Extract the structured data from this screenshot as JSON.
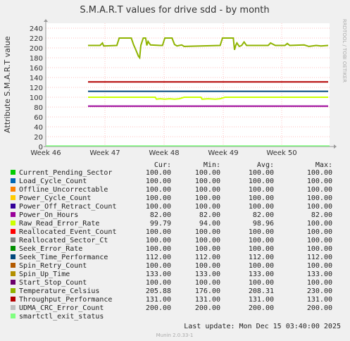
{
  "chart_data": {
    "type": "line",
    "title": "S.M.A.R.T values for drive sdd - by month",
    "ylabel": "Attribute S.M.A.R.T value",
    "side_label": "RRDTOOL / TOBI OETIKER",
    "x_ticks": [
      "Week 46",
      "Week 47",
      "Week 48",
      "Week 49",
      "Week 50"
    ],
    "y_ticks": [
      0,
      20,
      40,
      60,
      80,
      100,
      120,
      140,
      160,
      180,
      200,
      220,
      240
    ],
    "ylim": [
      0,
      250
    ],
    "grid": true,
    "columns": [
      "Cur:",
      "Min:",
      "Avg:",
      "Max:"
    ],
    "series": [
      {
        "name": "Current_Pending_Sector",
        "color": "#00cc00",
        "cur": "100.00",
        "min": "100.00",
        "avg": "100.00",
        "max": "100.00",
        "line": "hidden"
      },
      {
        "name": "Load_Cycle_Count",
        "color": "#0066b3",
        "cur": "100.00",
        "min": "100.00",
        "avg": "100.00",
        "max": "100.00",
        "line": "hidden"
      },
      {
        "name": "Offline_Uncorrectable",
        "color": "#ff8000",
        "cur": "100.00",
        "min": "100.00",
        "avg": "100.00",
        "max": "100.00",
        "line": "hidden"
      },
      {
        "name": "Power_Cycle_Count",
        "color": "#ffcc00",
        "cur": "100.00",
        "min": "100.00",
        "avg": "100.00",
        "max": "100.00",
        "line": "hidden"
      },
      {
        "name": "Power_Off_Retract_Count",
        "color": "#330099",
        "cur": "100.00",
        "min": "100.00",
        "avg": "100.00",
        "max": "100.00",
        "line": "hidden"
      },
      {
        "name": "Power_On_Hours",
        "color": "#990099",
        "cur": "82.00",
        "min": "82.00",
        "avg": "82.00",
        "max": "82.00",
        "line": "flat",
        "value": 82
      },
      {
        "name": "Raw_Read_Error_Rate",
        "color": "#ccff00",
        "cur": "99.79",
        "min": "94.00",
        "avg": "98.96",
        "max": "100.00",
        "line": "raw_read"
      },
      {
        "name": "Reallocated_Event_Count",
        "color": "#ff0000",
        "cur": "100.00",
        "min": "100.00",
        "avg": "100.00",
        "max": "100.00",
        "line": "hidden"
      },
      {
        "name": "Reallocated_Sector_Ct",
        "color": "#808080",
        "cur": "100.00",
        "min": "100.00",
        "avg": "100.00",
        "max": "100.00",
        "line": "hidden"
      },
      {
        "name": "Seek_Error_Rate",
        "color": "#008f00",
        "cur": "100.00",
        "min": "100.00",
        "avg": "100.00",
        "max": "100.00",
        "line": "hidden"
      },
      {
        "name": "Seek_Time_Performance",
        "color": "#00487d",
        "cur": "112.00",
        "min": "112.00",
        "avg": "112.00",
        "max": "112.00",
        "line": "flat",
        "value": 112
      },
      {
        "name": "Spin_Retry_Count",
        "color": "#b35a00",
        "cur": "100.00",
        "min": "100.00",
        "avg": "100.00",
        "max": "100.00",
        "line": "hidden"
      },
      {
        "name": "Spin_Up_Time",
        "color": "#b38f00",
        "cur": "133.00",
        "min": "133.00",
        "avg": "133.00",
        "max": "133.00",
        "line": "hidden"
      },
      {
        "name": "Start_Stop_Count",
        "color": "#6b006b",
        "cur": "100.00",
        "min": "100.00",
        "avg": "100.00",
        "max": "100.00",
        "line": "hidden"
      },
      {
        "name": "Temperature_Celsius",
        "color": "#8fb300",
        "cur": "205.88",
        "min": "176.00",
        "avg": "208.31",
        "max": "230.00",
        "line": "temperature"
      },
      {
        "name": "Throughput_Performance",
        "color": "#b30000",
        "cur": "131.00",
        "min": "131.00",
        "avg": "131.00",
        "max": "131.00",
        "line": "flat",
        "value": 131
      },
      {
        "name": "UDMA_CRC_Error_Count",
        "color": "#bebebe",
        "cur": "200.00",
        "min": "200.00",
        "avg": "200.00",
        "max": "200.00",
        "line": "hidden"
      },
      {
        "name": "smartctl_exit_status",
        "color": "#80ff80",
        "cur": "",
        "min": "",
        "avg": "",
        "max": "",
        "line": "zero"
      }
    ],
    "temperature_path": [
      [
        0.0,
        205
      ],
      [
        0.05,
        205
      ],
      [
        0.06,
        210
      ],
      [
        0.065,
        204
      ],
      [
        0.12,
        205
      ],
      [
        0.13,
        220
      ],
      [
        0.145,
        220
      ],
      [
        0.18,
        220
      ],
      [
        0.19,
        206
      ],
      [
        0.2,
        195
      ],
      [
        0.21,
        183
      ],
      [
        0.215,
        180
      ],
      [
        0.22,
        205
      ],
      [
        0.23,
        220
      ],
      [
        0.24,
        220
      ],
      [
        0.245,
        205
      ],
      [
        0.25,
        213
      ],
      [
        0.26,
        206
      ],
      [
        0.3,
        205
      ],
      [
        0.31,
        205
      ],
      [
        0.32,
        220
      ],
      [
        0.35,
        220
      ],
      [
        0.36,
        207
      ],
      [
        0.37,
        204
      ],
      [
        0.39,
        206
      ],
      [
        0.4,
        203
      ],
      [
        0.55,
        205
      ],
      [
        0.56,
        220
      ],
      [
        0.605,
        220
      ],
      [
        0.61,
        196
      ],
      [
        0.615,
        205
      ],
      [
        0.62,
        210
      ],
      [
        0.63,
        203
      ],
      [
        0.64,
        205
      ],
      [
        0.65,
        212
      ],
      [
        0.66,
        205
      ],
      [
        0.75,
        205
      ],
      [
        0.76,
        210
      ],
      [
        0.78,
        205
      ],
      [
        0.8,
        205
      ],
      [
        0.82,
        205
      ],
      [
        0.83,
        209
      ],
      [
        0.84,
        205
      ],
      [
        0.9,
        206
      ],
      [
        0.92,
        203
      ],
      [
        0.95,
        205
      ],
      [
        0.97,
        204
      ],
      [
        1.0,
        205
      ]
    ],
    "raw_read_path": [
      [
        0.0,
        100
      ],
      [
        0.28,
        100
      ],
      [
        0.285,
        96
      ],
      [
        0.3,
        97
      ],
      [
        0.32,
        96
      ],
      [
        0.34,
        97
      ],
      [
        0.36,
        96
      ],
      [
        0.38,
        97
      ],
      [
        0.4,
        100
      ],
      [
        0.47,
        100
      ],
      [
        0.475,
        96
      ],
      [
        0.5,
        97
      ],
      [
        0.53,
        96
      ],
      [
        0.55,
        97
      ],
      [
        0.57,
        100
      ],
      [
        0.6,
        100
      ],
      [
        0.65,
        100
      ],
      [
        0.7,
        100
      ],
      [
        1.0,
        100
      ]
    ],
    "line_start_fraction": 0.0,
    "footer": {
      "last_update": "Last update:  Mon Dec 15 03:40:00 2025",
      "munin": "Munin 2.0.33-1"
    }
  }
}
